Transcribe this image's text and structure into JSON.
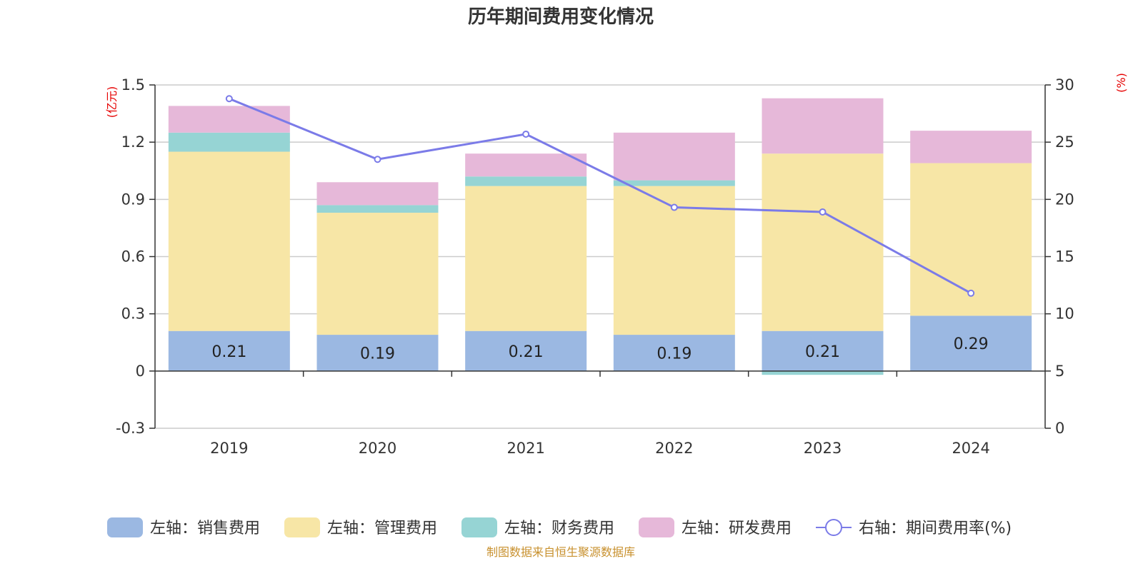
{
  "title": "历年期间费用变化情况",
  "footer": "制图数据来自恒生聚源数据库",
  "colors": {
    "sales": "#9bb8e2",
    "admin": "#f7e6a6",
    "finance": "#96d4d4",
    "rnd": "#e6b8d9",
    "rate": "#7b7be8",
    "axis": "#333333",
    "grid": "#cccccc",
    "unit": "#e60000"
  },
  "chart_data": {
    "type": "bar",
    "categories": [
      "2019",
      "2020",
      "2021",
      "2022",
      "2023",
      "2024"
    ],
    "left_axis": {
      "unit_label": "(亿元)",
      "ticks": [
        "1.5",
        "1.2",
        "0.9",
        "0.6",
        "0.3",
        "0",
        "-0.3"
      ],
      "ylim": [
        -0.3,
        1.5
      ]
    },
    "right_axis": {
      "unit_label": "(%)",
      "ticks": [
        "30",
        "25",
        "20",
        "15",
        "10",
        "5",
        "0"
      ],
      "ylim": [
        0,
        30
      ]
    },
    "series": [
      {
        "name": "左轴：销售费用",
        "key": "sales",
        "type": "bar",
        "stack": true,
        "values": [
          0.21,
          0.19,
          0.21,
          0.19,
          0.21,
          0.29
        ],
        "labels": [
          "0.21",
          "0.19",
          "0.21",
          "0.19",
          "0.21",
          "0.29"
        ]
      },
      {
        "name": "左轴：管理费用",
        "key": "admin",
        "type": "bar",
        "stack": true,
        "values": [
          0.94,
          0.64,
          0.76,
          0.78,
          0.93,
          0.8
        ]
      },
      {
        "name": "左轴：财务费用",
        "key": "finance",
        "type": "bar",
        "stack": true,
        "values": [
          0.1,
          0.04,
          0.05,
          0.03,
          -0.02,
          0.0
        ]
      },
      {
        "name": "左轴：研发费用",
        "key": "rnd",
        "type": "bar",
        "stack": true,
        "values": [
          0.14,
          0.12,
          0.12,
          0.25,
          0.29,
          0.17
        ]
      },
      {
        "name": "右轴：期间费用率(%)",
        "key": "rate",
        "type": "line",
        "axis": "right",
        "values": [
          28.8,
          23.5,
          25.7,
          19.3,
          18.9,
          11.8
        ]
      }
    ],
    "grid": true,
    "legend_position": "bottom"
  }
}
